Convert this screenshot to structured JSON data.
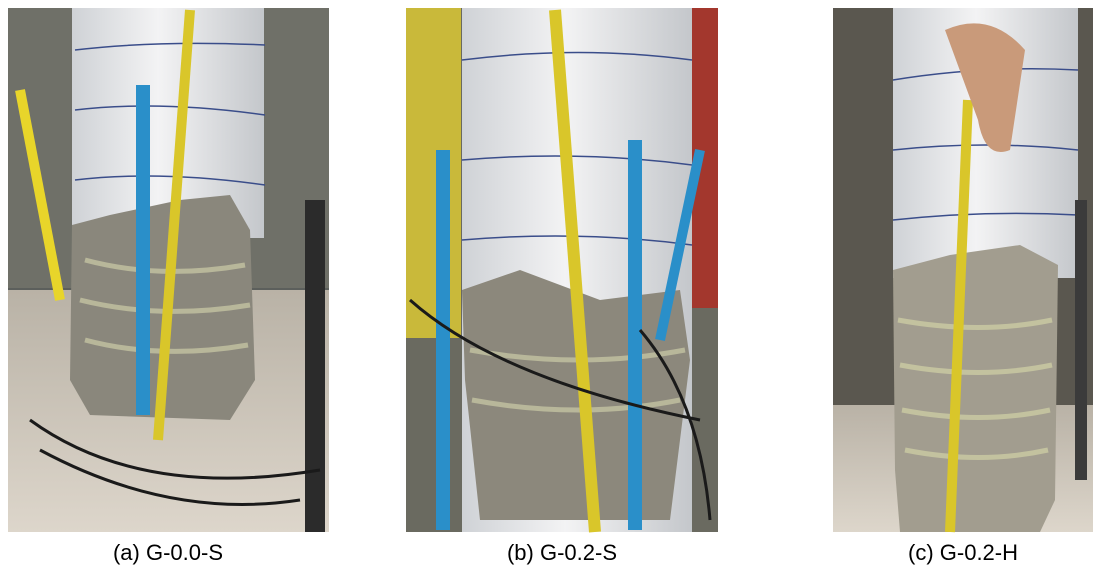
{
  "panels": [
    {
      "caption": "(a) G-0.0-S"
    },
    {
      "caption": "(b) G-0.2-S"
    },
    {
      "caption": "(c) G-0.2-H"
    }
  ]
}
